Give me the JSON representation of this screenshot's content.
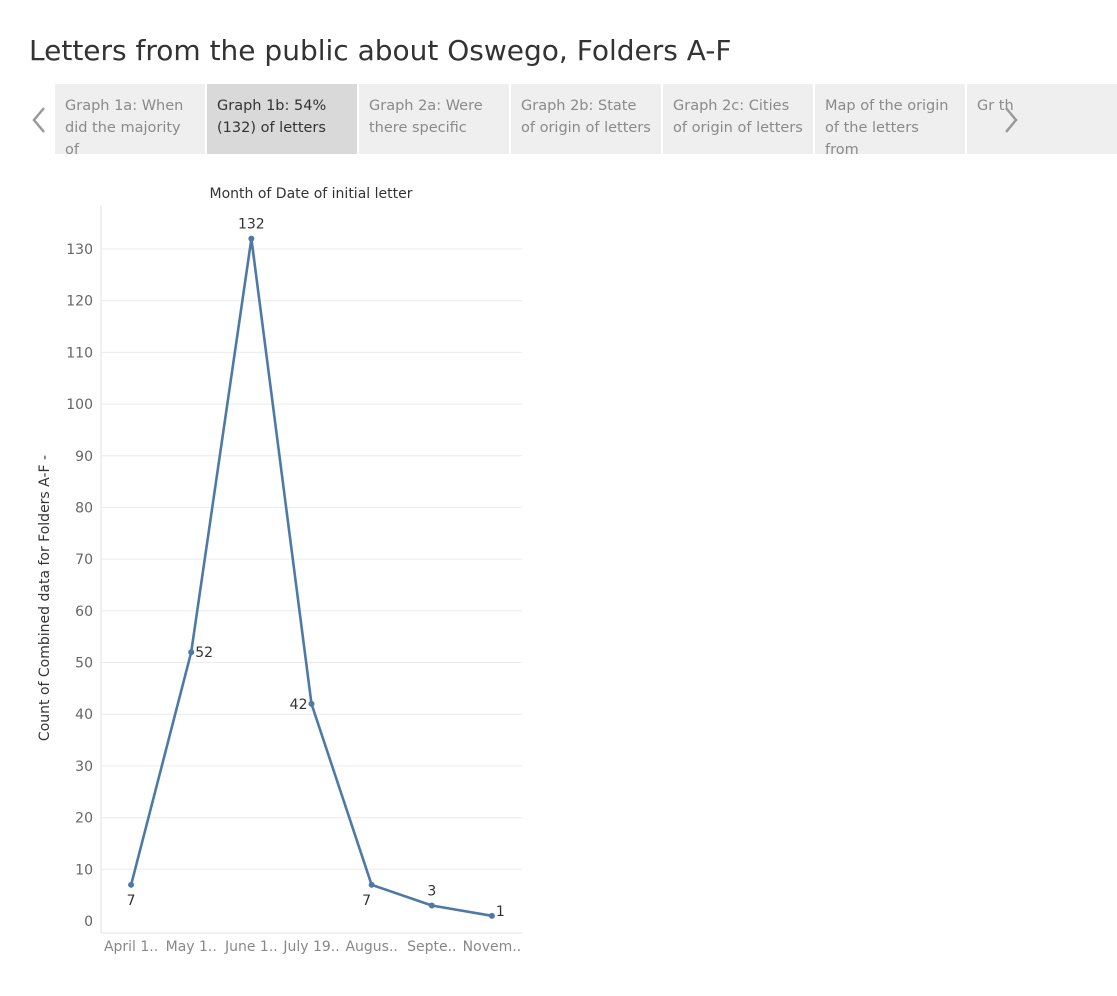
{
  "page": {
    "title": "Letters from the public about Oswego, Folders A-F"
  },
  "story_nav": {
    "prev_icon": "chevron-left-icon",
    "next_icon": "chevron-right-icon",
    "tabs": [
      {
        "label": "Graph 1a: When did the majority of",
        "active": false
      },
      {
        "label": "Graph 1b: 54% (132) of letters",
        "active": true
      },
      {
        "label": "Graph 2a: Were there specific",
        "active": false
      },
      {
        "label": "Graph 2b: State of origin of letters",
        "active": false
      },
      {
        "label": "Graph 2c: Cities of origin of letters",
        "active": false
      },
      {
        "label": "Map of the origin of the letters from",
        "active": false
      },
      {
        "label": "Gr th",
        "active": false
      }
    ]
  },
  "chart_data": {
    "type": "line",
    "title": "Month of Date of initial letter",
    "xlabel": "",
    "ylabel": "Count of Combined data for Folders A-F -",
    "categories": [
      "April 1..",
      "May 1..",
      "June 1..",
      "July 19..",
      "Augus..",
      "Septe..",
      "Novem.."
    ],
    "values": [
      7,
      52,
      132,
      42,
      7,
      3,
      1
    ],
    "data_labels": [
      "7",
      "52",
      "132",
      "42",
      "7",
      "3",
      "1"
    ],
    "yticks": [
      0,
      10,
      20,
      30,
      40,
      50,
      60,
      70,
      80,
      90,
      100,
      110,
      120,
      130
    ],
    "ylim": [
      0,
      133
    ],
    "grid": true,
    "line_color": "#4e79a7"
  }
}
